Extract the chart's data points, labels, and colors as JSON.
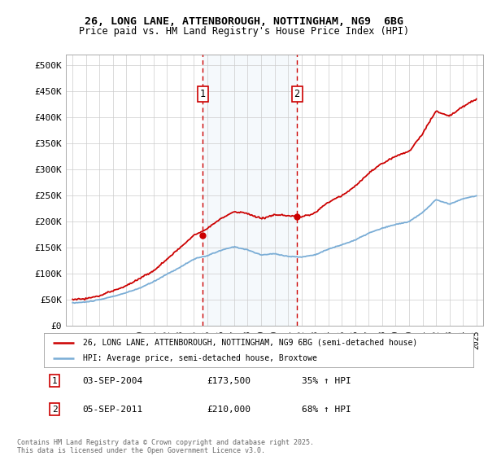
{
  "title1": "26, LONG LANE, ATTENBOROUGH, NOTTINGHAM, NG9  6BG",
  "title2": "Price paid vs. HM Land Registry's House Price Index (HPI)",
  "background_color": "#ffffff",
  "plot_bg_color": "#ffffff",
  "grid_color": "#cccccc",
  "red_color": "#cc0000",
  "blue_color": "#7aadd6",
  "shade_color": "#daeaf5",
  "vline_color": "#cc0000",
  "sale1_year": 2004.67,
  "sale1_price": 173500,
  "sale2_year": 2011.67,
  "sale2_price": 210000,
  "ylim_max": 520000,
  "yticks": [
    0,
    50000,
    100000,
    150000,
    200000,
    250000,
    300000,
    350000,
    400000,
    450000,
    500000
  ],
  "footer": "Contains HM Land Registry data © Crown copyright and database right 2025.\nThis data is licensed under the Open Government Licence v3.0.",
  "legend_label_red": "26, LONG LANE, ATTENBOROUGH, NOTTINGHAM, NG9 6BG (semi-detached house)",
  "legend_label_blue": "HPI: Average price, semi-detached house, Broxtowe",
  "note1_num": "1",
  "note1_date": "03-SEP-2004",
  "note1_price": "£173,500",
  "note1_hpi": "35% ↑ HPI",
  "note2_num": "2",
  "note2_date": "05-SEP-2011",
  "note2_price": "£210,000",
  "note2_hpi": "68% ↑ HPI"
}
